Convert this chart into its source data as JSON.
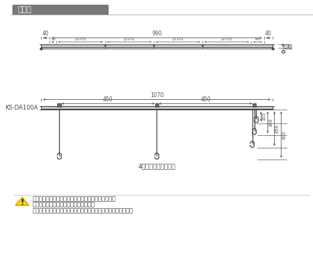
{
  "title": "詳細図",
  "white_bg": "#ffffff",
  "header_bg": "#777777",
  "header_text_color": "#ffffff",
  "lc": "#444444",
  "dc": "#555555",
  "plate_fill": "#cccccc",
  "warning_text": [
    "危険ですのでボールや篹にぶら下がらないで下さい。",
    "本製品は屋外では使用しないで下さい。",
    "下地は室内物干の制限荷重に十分耐えられるようにして下さい。"
  ],
  "caption": "4段階に高さ変更可能",
  "label_ks": "KS-DA100A"
}
